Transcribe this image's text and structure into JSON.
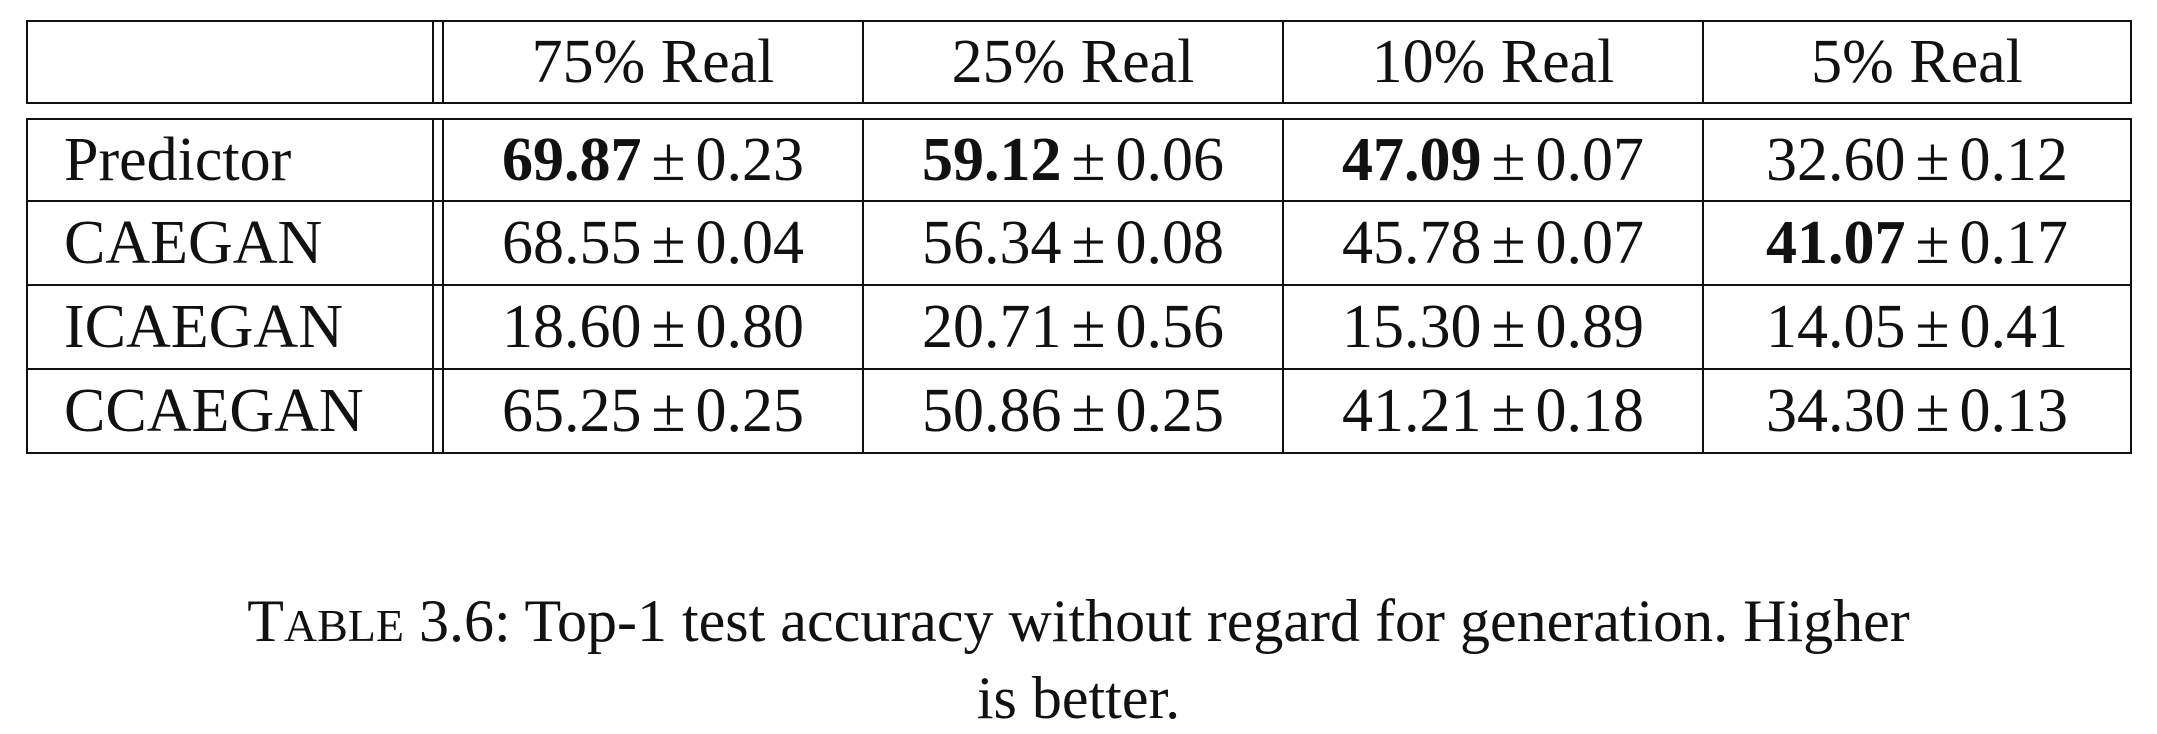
{
  "table": {
    "columns": [
      "",
      "75% Real",
      "25% Real",
      "10% Real",
      "5% Real"
    ],
    "pm_symbol": "±",
    "rows": [
      {
        "label": "Predictor",
        "cells": [
          {
            "mean": "69.87",
            "std": "0.23",
            "bold": true
          },
          {
            "mean": "59.12",
            "std": "0.06",
            "bold": true
          },
          {
            "mean": "47.09",
            "std": "0.07",
            "bold": true
          },
          {
            "mean": "32.60",
            "std": "0.12",
            "bold": false
          }
        ]
      },
      {
        "label": "CAEGAN",
        "cells": [
          {
            "mean": "68.55",
            "std": "0.04",
            "bold": false
          },
          {
            "mean": "56.34",
            "std": "0.08",
            "bold": false
          },
          {
            "mean": "45.78",
            "std": "0.07",
            "bold": false
          },
          {
            "mean": "41.07",
            "std": "0.17",
            "bold": true
          }
        ]
      },
      {
        "label": "ICAEGAN",
        "cells": [
          {
            "mean": "18.60",
            "std": "0.80",
            "bold": false
          },
          {
            "mean": "20.71",
            "std": "0.56",
            "bold": false
          },
          {
            "mean": "15.30",
            "std": "0.89",
            "bold": false
          },
          {
            "mean": "14.05",
            "std": "0.41",
            "bold": false
          }
        ]
      },
      {
        "label": "CCAEGAN",
        "cells": [
          {
            "mean": "65.25",
            "std": "0.25",
            "bold": false
          },
          {
            "mean": "50.86",
            "std": "0.25",
            "bold": false
          },
          {
            "mean": "41.21",
            "std": "0.18",
            "bold": false
          },
          {
            "mean": "34.30",
            "std": "0.13",
            "bold": false
          }
        ]
      }
    ]
  },
  "caption": {
    "label_first": "T",
    "label_rest": "ABLE",
    "number": "3.6:",
    "line1": "Top-1 test accuracy without regard for generation. Higher",
    "line2": "is better."
  }
}
